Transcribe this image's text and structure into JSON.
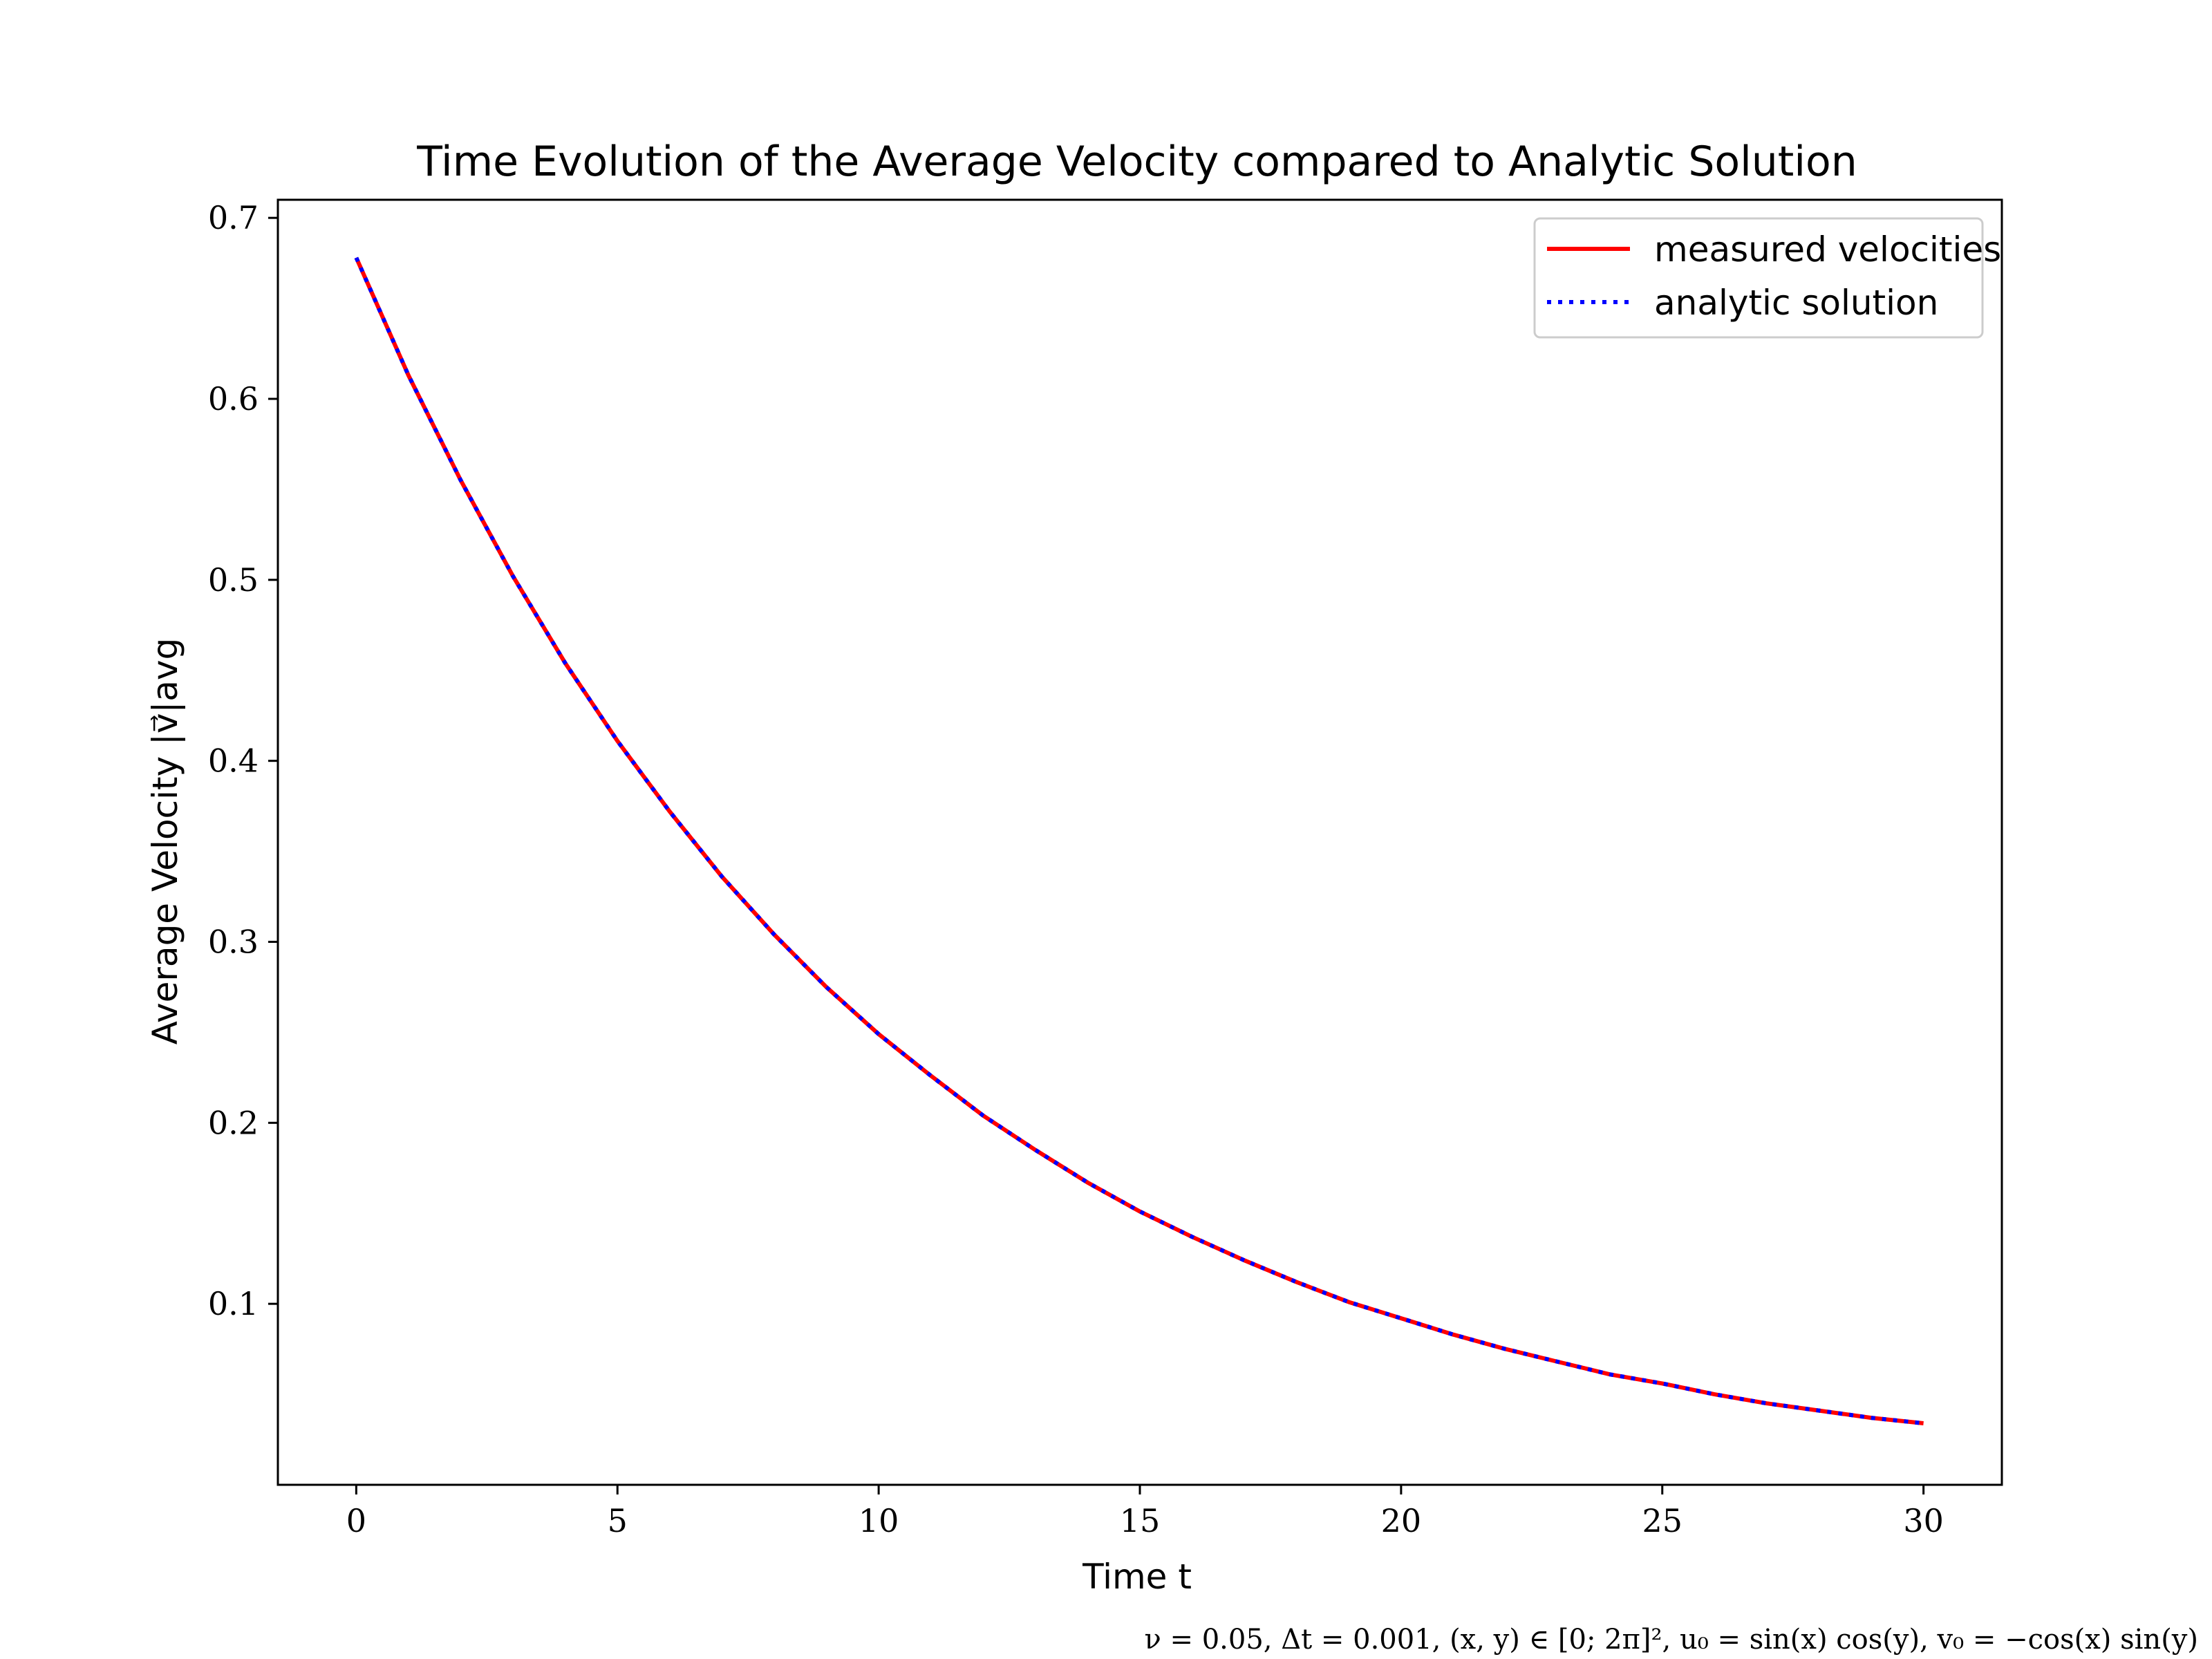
{
  "chart_data": {
    "type": "line",
    "title": "Time Evolution of the Average Velocity compared to Analytic Solution",
    "xlabel": "Time t",
    "ylabel": "Average Velocity |v⃗|avg",
    "xlim": [
      -1.5,
      31.5
    ],
    "ylim": [
      0.0,
      0.71
    ],
    "xticks": [
      0,
      5,
      10,
      15,
      20,
      25,
      30
    ],
    "xtick_labels": [
      "0",
      "5",
      "10",
      "15",
      "20",
      "25",
      "30"
    ],
    "yticks": [
      0.1,
      0.2,
      0.3,
      0.4,
      0.5,
      0.6,
      0.7
    ],
    "ytick_labels": [
      "0.1",
      "0.2",
      "0.3",
      "0.4",
      "0.5",
      "0.6",
      "0.7"
    ],
    "grid": false,
    "legend_position": "top-right",
    "x": [
      0,
      1,
      2,
      3,
      4,
      5,
      6,
      7,
      8,
      9,
      10,
      11,
      12,
      13,
      14,
      15,
      16,
      17,
      18,
      19,
      20,
      21,
      22,
      23,
      24,
      25,
      26,
      27,
      28,
      29,
      30
    ],
    "series": [
      {
        "name": "measured velocities",
        "color": "#ff0000",
        "style": "solid",
        "values": [
          0.678,
          0.613,
          0.555,
          0.502,
          0.454,
          0.411,
          0.372,
          0.336,
          0.304,
          0.275,
          0.249,
          0.226,
          0.204,
          0.185,
          0.167,
          0.151,
          0.137,
          0.124,
          0.112,
          0.101,
          0.092,
          0.083,
          0.075,
          0.068,
          0.061,
          0.056,
          0.05,
          0.045,
          0.041,
          0.037,
          0.034
        ]
      },
      {
        "name": "analytic solution",
        "color": "#0000ff",
        "style": "dotted",
        "values": [
          0.678,
          0.613,
          0.555,
          0.502,
          0.454,
          0.411,
          0.372,
          0.336,
          0.304,
          0.275,
          0.249,
          0.226,
          0.204,
          0.185,
          0.167,
          0.151,
          0.137,
          0.124,
          0.112,
          0.101,
          0.092,
          0.083,
          0.075,
          0.068,
          0.061,
          0.056,
          0.05,
          0.045,
          0.041,
          0.037,
          0.034
        ]
      }
    ],
    "annotation": "ν = 0.05, Δt = 0.001, (x, y) ∈ [0; 2π]², u₀ = sin(x) cos(y), v₀ = −cos(x) sin(y)"
  }
}
